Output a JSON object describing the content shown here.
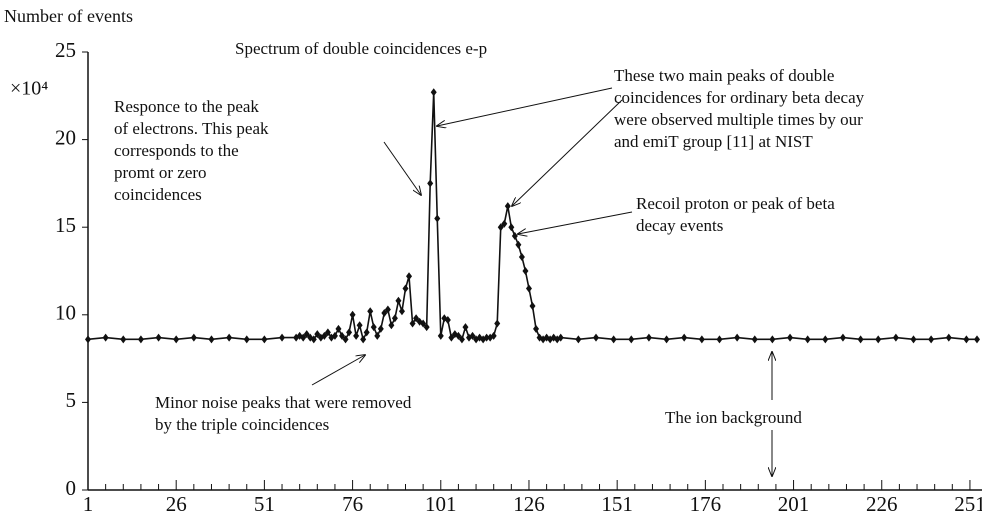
{
  "chart_data": {
    "type": "line",
    "title": "Spectrum of double coincidences e-p",
    "ylabel": "Number of events",
    "yscale_label": "×10⁴",
    "xlim": [
      1,
      253
    ],
    "ylim": [
      0,
      25
    ],
    "xticks": [
      1,
      26,
      51,
      76,
      101,
      126,
      151,
      176,
      201,
      226,
      251
    ],
    "xminorticks": [
      6,
      11,
      16,
      21,
      31,
      36,
      41,
      46,
      56,
      61,
      66,
      71,
      81,
      86,
      91,
      96,
      106,
      111,
      116,
      121,
      131,
      136,
      141,
      146,
      156,
      161,
      166,
      171,
      181,
      186,
      191,
      196,
      206,
      211,
      216,
      221,
      231,
      236,
      241,
      246
    ],
    "yticks": [
      0,
      5,
      10,
      15,
      20,
      25
    ],
    "annotations": [
      {
        "lines": [
          "Responce to the peak",
          "of electrons. This peak",
          "corresponds to the",
          "promt or zero",
          "coincidences"
        ]
      },
      {
        "lines": [
          "These two main peaks of double",
          "coincidences for  ordinary beta decay",
          "were observed multiple times by our",
          "and emiT group [11] at NIST"
        ]
      },
      {
        "lines": [
          "Recoil proton or peak of beta",
          "decay events"
        ]
      },
      {
        "lines": [
          "Minor noise peaks that were removed",
          "by the triple coincidences"
        ]
      },
      {
        "lines": [
          "The ion background"
        ]
      }
    ],
    "series": [
      {
        "color": "#111111",
        "x": [
          1,
          6,
          11,
          16,
          21,
          26,
          31,
          36,
          41,
          46,
          51,
          56,
          60,
          61,
          62,
          63,
          64,
          65,
          66,
          67,
          68,
          69,
          70,
          71,
          72,
          73,
          74,
          75,
          76,
          77,
          78,
          79,
          80,
          81,
          82,
          83,
          84,
          85,
          86,
          87,
          88,
          89,
          90,
          91,
          92,
          93,
          94,
          95,
          96,
          97,
          98,
          99,
          100,
          101,
          102,
          103,
          104,
          105,
          106,
          107,
          108,
          109,
          110,
          111,
          112,
          113,
          114,
          115,
          116,
          117,
          118,
          119,
          120,
          121,
          122,
          123,
          124,
          125,
          126,
          127,
          128,
          129,
          130,
          131,
          132,
          133,
          134,
          135,
          140,
          145,
          150,
          155,
          160,
          165,
          170,
          175,
          180,
          185,
          190,
          195,
          200,
          205,
          210,
          215,
          220,
          225,
          230,
          235,
          240,
          245,
          250,
          253
        ],
        "values": [
          8.6,
          8.7,
          8.6,
          8.6,
          8.7,
          8.6,
          8.7,
          8.6,
          8.7,
          8.6,
          8.6,
          8.7,
          8.7,
          8.8,
          8.7,
          8.9,
          8.7,
          8.6,
          8.9,
          8.7,
          8.8,
          9.0,
          8.7,
          8.8,
          9.2,
          8.8,
          8.6,
          9.0,
          10.0,
          8.8,
          9.4,
          8.6,
          9.0,
          10.2,
          9.3,
          8.8,
          9.2,
          10.1,
          10.3,
          9.4,
          9.8,
          10.8,
          10.2,
          11.5,
          12.2,
          9.5,
          9.8,
          9.6,
          9.5,
          9.3,
          17.5,
          22.7,
          15.5,
          8.8,
          9.8,
          9.7,
          8.7,
          8.9,
          8.8,
          8.6,
          9.3,
          8.7,
          8.8,
          8.6,
          8.7,
          8.6,
          8.7,
          8.7,
          8.8,
          9.5,
          15.0,
          15.2,
          16.2,
          15.0,
          14.5,
          14.0,
          13.3,
          12.5,
          11.5,
          10.5,
          9.2,
          8.7,
          8.6,
          8.7,
          8.6,
          8.7,
          8.6,
          8.7,
          8.6,
          8.7,
          8.6,
          8.6,
          8.7,
          8.6,
          8.7,
          8.6,
          8.6,
          8.7,
          8.6,
          8.6,
          8.7,
          8.6,
          8.6,
          8.7,
          8.6,
          8.6,
          8.7,
          8.6,
          8.6,
          8.7,
          8.6,
          8.6
        ]
      }
    ]
  }
}
